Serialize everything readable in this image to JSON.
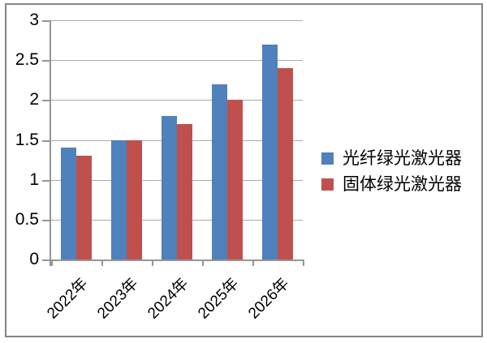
{
  "chart_data": {
    "type": "bar",
    "title": "",
    "categories": [
      "2022年",
      "2023年",
      "2024年",
      "2025年",
      "2026年"
    ],
    "series": [
      {
        "name": "光纤绿光激光器",
        "color": "#4F81BD",
        "values": [
          1.4,
          1.5,
          1.8,
          2.2,
          2.7
        ]
      },
      {
        "name": "固体绿光激光器",
        "color": "#C0504D",
        "values": [
          1.3,
          1.5,
          1.7,
          2.0,
          2.4
        ]
      }
    ],
    "xlabel": "",
    "ylabel": "",
    "ylim": [
      0,
      3
    ],
    "ytick_step": 0.5,
    "ytick_labels": [
      "0",
      "0.5",
      "1",
      "1.5",
      "2",
      "2.5",
      "3"
    ],
    "grid": true,
    "legend_position": "center-right"
  },
  "colors": {
    "series_blue": "#4F81BD",
    "series_red": "#C0504D",
    "gridline": "#ABABAB",
    "axis": "#969696",
    "frame_border": "#858585",
    "text": "#000000",
    "background": "#FFFFFF"
  }
}
